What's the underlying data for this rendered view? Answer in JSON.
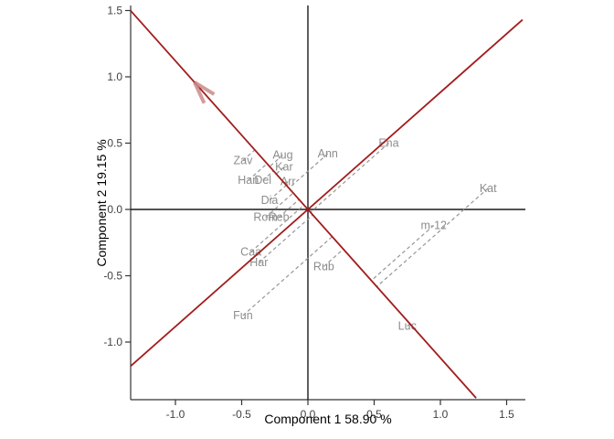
{
  "chart_data": {
    "type": "scatter",
    "title": "",
    "xlabel": "Component 1 58.90 %",
    "ylabel": "Component 2 19.15 %",
    "xlim": [
      -1.34,
      1.63
    ],
    "ylim": [
      -1.43,
      1.54
    ],
    "grid": false,
    "x_tick_values": [
      -1.0,
      -0.5,
      0.0,
      0.5,
      1.0,
      1.5
    ],
    "x_tick_labels": [
      "-1.0",
      "-0.5",
      "0.0",
      "0.5",
      "1.0",
      "1.5"
    ],
    "y_tick_values": [
      -1.0,
      -0.5,
      0.0,
      0.5,
      1.0,
      1.5
    ],
    "y_tick_labels": [
      "-1.0",
      "-0.5",
      "0.0",
      "0.5",
      "1.0",
      "1.5"
    ],
    "zero_lines": true,
    "rotated_axes": [
      {
        "name": "axis-1",
        "slope": -1.12,
        "x_range": [
          -1.338,
          1.27
        ]
      },
      {
        "name": "axis-2",
        "slope": 0.883,
        "x_range": [
          -1.338,
          1.62
        ]
      }
    ],
    "projection": {
      "onto_slope": -1.12,
      "along_slope": 0.883
    },
    "arrow": {
      "tip": {
        "x": -0.855,
        "y": 0.958
      },
      "direction": "up-left"
    },
    "points": [
      {
        "label": "Zav",
        "x": -0.49,
        "y": 0.37
      },
      {
        "label": "Aug",
        "x": -0.19,
        "y": 0.41
      },
      {
        "label": "Kar",
        "x": -0.18,
        "y": 0.32
      },
      {
        "label": "Ann",
        "x": 0.15,
        "y": 0.42
      },
      {
        "label": "Ena",
        "x": 0.61,
        "y": 0.5
      },
      {
        "label": "Kat",
        "x": 1.36,
        "y": 0.16
      },
      {
        "label": "Han",
        "x": -0.45,
        "y": 0.22
      },
      {
        "label": "Del",
        "x": -0.34,
        "y": 0.22
      },
      {
        "label": "Arr",
        "x": -0.15,
        "y": 0.21
      },
      {
        "label": "Dia",
        "x": -0.29,
        "y": 0.07
      },
      {
        "label": "Rom",
        "x": -0.32,
        "y": -0.06
      },
      {
        "label": "Reb",
        "x": -0.22,
        "y": -0.06
      },
      {
        "label": "Caa",
        "x": -0.43,
        "y": -0.32
      },
      {
        "label": "Har",
        "x": -0.37,
        "y": -0.4
      },
      {
        "label": "Fun",
        "x": -0.49,
        "y": -0.8
      },
      {
        "label": "Rub",
        "x": 0.12,
        "y": -0.43
      },
      {
        "label": "Luc",
        "x": 0.75,
        "y": -0.88
      },
      {
        "label": "m-12",
        "x": 0.95,
        "y": -0.12
      }
    ],
    "colors": {
      "rotated_axis": "#a21c1c",
      "arrowhead": "#c58381",
      "projection_dash": "#969696",
      "point_label": "#8c8c8c",
      "tick_label": "#404040",
      "axis_title": "#000000",
      "crosshair": "#1a1a1a",
      "spine": "#333333"
    }
  }
}
